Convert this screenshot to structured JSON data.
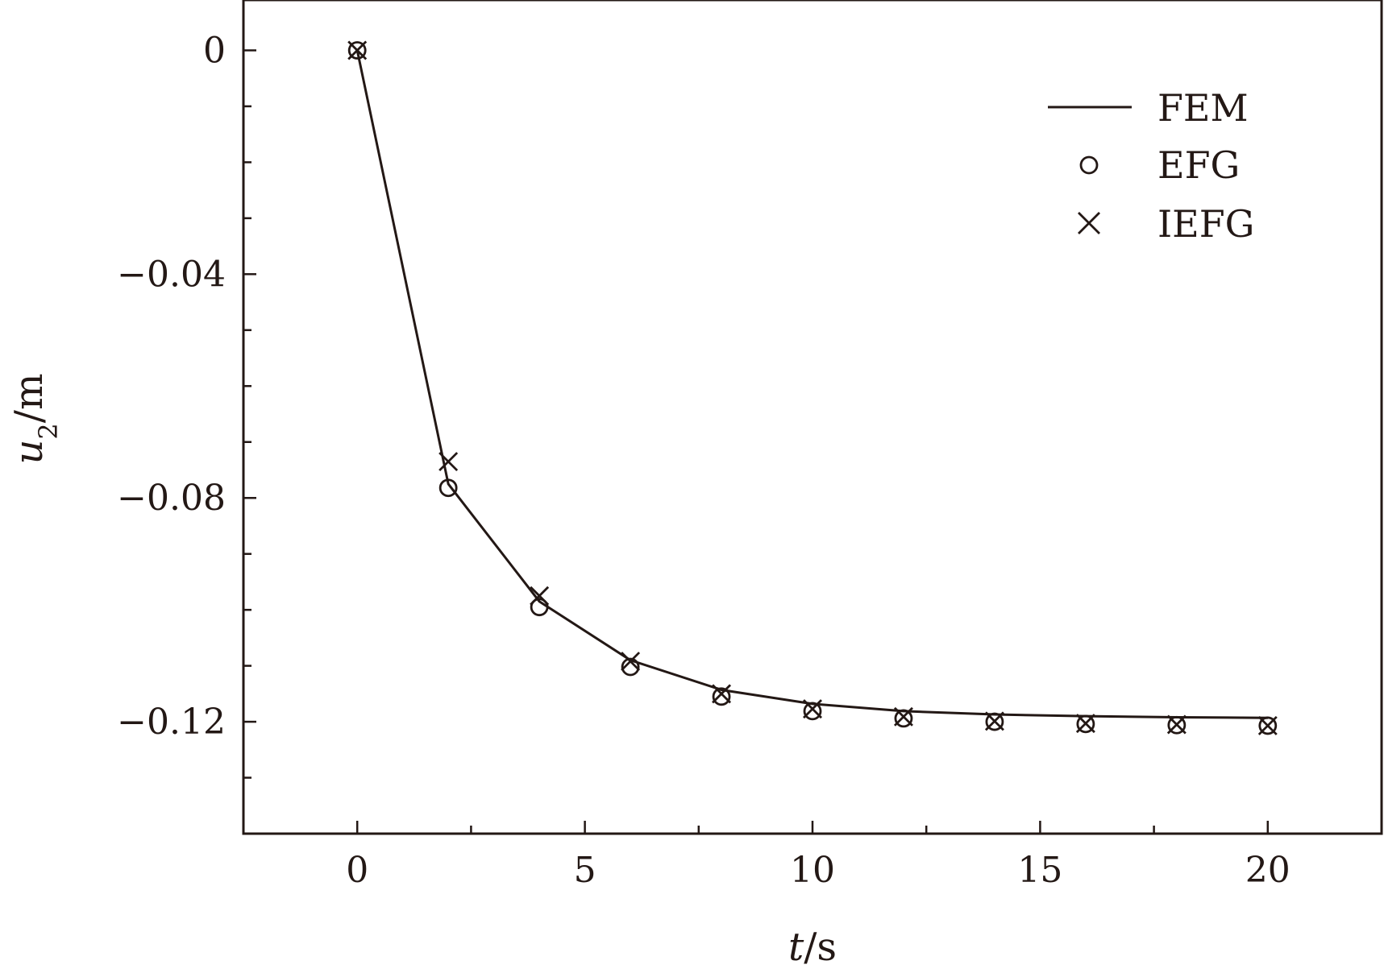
{
  "chart_data": {
    "type": "line",
    "title": "",
    "xlabel": "t/s",
    "ylabel": "u2/m",
    "xlim": [
      -2.5,
      22.5
    ],
    "ylim": [
      -0.14,
      0.009
    ],
    "xticks": [
      0,
      5,
      10,
      15,
      20
    ],
    "xtick_labels": [
      "0",
      "5",
      "10",
      "15",
      "20"
    ],
    "xminor": [
      2.5,
      7.5,
      12.5,
      17.5
    ],
    "yticks": [
      0,
      -0.04,
      -0.08,
      -0.12
    ],
    "ytick_labels": [
      "0",
      "−0.04",
      "−0.08",
      "−0.12"
    ],
    "yminor": [
      -0.01,
      -0.02,
      -0.03,
      -0.05,
      -0.06,
      -0.07,
      -0.09,
      -0.1,
      -0.11,
      -0.13
    ],
    "grid": false,
    "legend_position": "top-right",
    "x": [
      0,
      2,
      4,
      6,
      8,
      10,
      12,
      14,
      16,
      18,
      20
    ],
    "series": [
      {
        "name": "FEM",
        "style": "line",
        "values": [
          0,
          -0.0775,
          -0.0985,
          -0.109,
          -0.1143,
          -0.1168,
          -0.1181,
          -0.1187,
          -0.119,
          -0.1192,
          -0.1193
        ]
      },
      {
        "name": "EFG",
        "style": "circle",
        "values": [
          0,
          -0.0782,
          -0.0995,
          -0.1102,
          -0.1155,
          -0.1181,
          -0.1194,
          -0.12,
          -0.1204,
          -0.1206,
          -0.1207
        ]
      },
      {
        "name": "IEFG",
        "style": "cross",
        "values": [
          0,
          -0.0735,
          -0.0975,
          -0.1092,
          -0.115,
          -0.1177,
          -0.1191,
          -0.1199,
          -0.1203,
          -0.1205,
          -0.1207
        ]
      }
    ],
    "colors": {
      "ink": "#231815",
      "background": "#ffffff"
    }
  }
}
